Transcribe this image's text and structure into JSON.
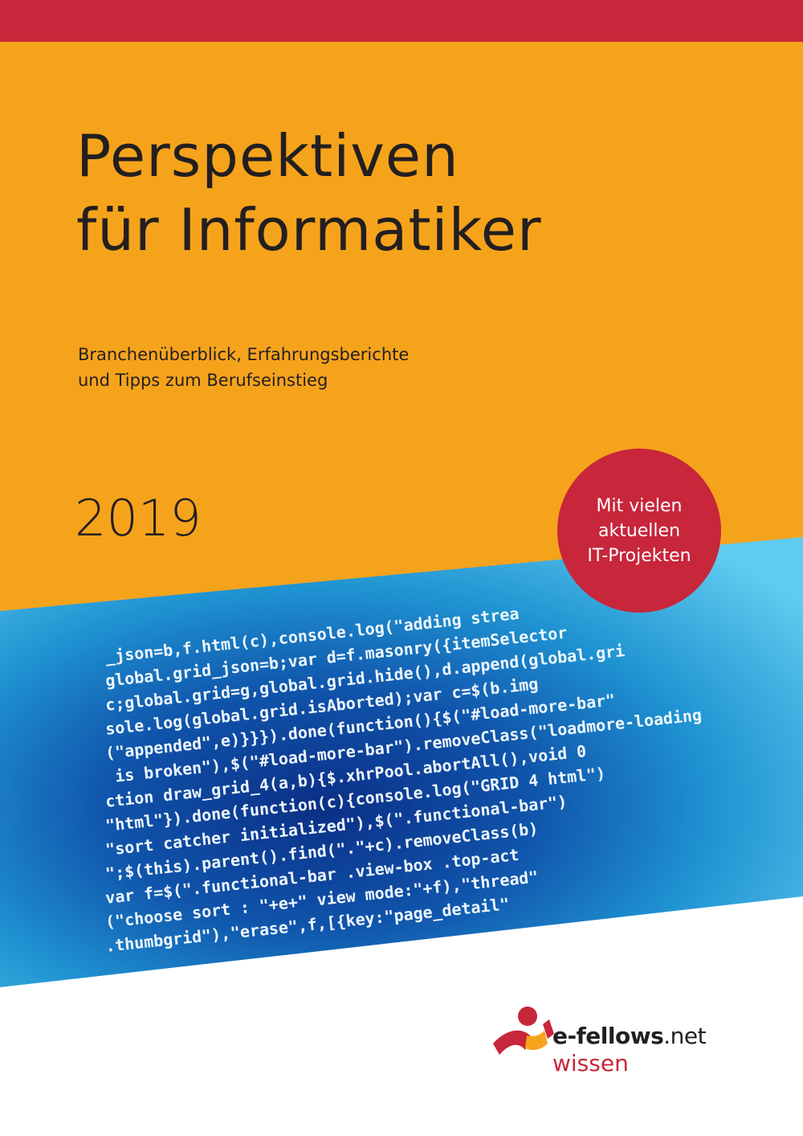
{
  "cover": {
    "title_line1": "Perspektiven",
    "title_line2": "für Informatiker",
    "subtitle_line1": "Branchenüberblick, Erfahrungsberichte",
    "subtitle_line2": "und Tipps zum Berufseinstieg",
    "year": "2019",
    "badge": {
      "line1": "Mit vielen",
      "line2": "aktuellen",
      "line3": "IT-Projekten"
    },
    "code_lines": [
      "_json=b,f.html(c),console.log(\"adding strea",
      "global.grid_json=b;var d=f.masonry({itemSelector",
      "c;global.grid=g,global.grid.hide(),d.append(global.gri",
      "sole.log(global.grid.isAborted);var c=$(b.img",
      "(\"appended\",e)}}}).done(function(){$(\"#load-more-bar\"",
      " is broken\"),$(\"#load-more-bar\").removeClass(\"loadmore-loading",
      "ction draw_grid_4(a,b){$.xhrPool.abortAll(),void 0",
      "\"html\"}).done(function(c){console.log(\"GRID 4 html\")",
      "\"sort catcher initialized\"),$(\".functional-bar\")",
      "\";$(this).parent().find(\".\"+c).removeClass(b)",
      "var f=$(\".functional-bar .view-box .top-act",
      "(\"choose sort : \"+e+\" view mode:\"+f),\"thread\"",
      ".thumbgrid\"),\"erase\",f,[{key:\"page_detail\""
    ]
  },
  "logo": {
    "brand": "e-fellows",
    "tld": ".net",
    "sub": "wissen"
  },
  "colors": {
    "red": "#c8263a",
    "orange": "#f6a31c",
    "blue": "#0f4fa8",
    "text": "#231f20"
  }
}
